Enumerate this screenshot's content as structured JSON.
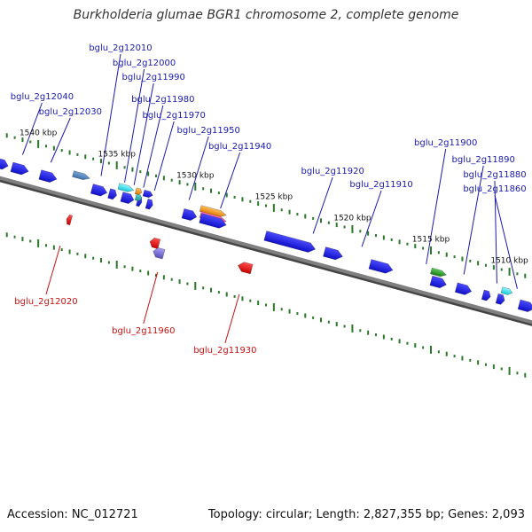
{
  "title": "Burkholderia glumae BGR1 chromosome 2, complete genome",
  "footer": {
    "accession": "Accession: NC_012721",
    "stats": "Topology: circular; Length: 2,827,355 bp; Genes: 2,093"
  },
  "colors": {
    "backbone": "#7f7f7f",
    "tick": "#2a7a2a",
    "forward_gene": "#1f1fe6",
    "reverse_gene": "#e01010",
    "forward_label": "#1a1ab0",
    "reverse_label": "#cc1010"
  },
  "scale": {
    "range_kbp": [
      1508,
      1543
    ],
    "labels": [
      "1540 kbp",
      "1535 kbp",
      "1530 kbp",
      "1525 kbp",
      "1520 kbp",
      "1515 kbp",
      "1510 kbp"
    ],
    "label_kbp": [
      1540,
      1535,
      1530,
      1525,
      1520,
      1515,
      1510
    ]
  },
  "forward_labels": [
    {
      "text": "bglu_2g12040",
      "kbp": 1541.0
    },
    {
      "text": "bglu_2g12030",
      "kbp": 1539.2
    },
    {
      "text": "bglu_2g12010",
      "kbp": 1536.0
    },
    {
      "text": "bglu_2g12000",
      "kbp": 1534.5
    },
    {
      "text": "bglu_2g11990",
      "kbp": 1533.9
    },
    {
      "text": "bglu_2g11980",
      "kbp": 1533.3
    },
    {
      "text": "bglu_2g11970",
      "kbp": 1532.6
    },
    {
      "text": "bglu_2g11950",
      "kbp": 1530.4
    },
    {
      "text": "bglu_2g11940",
      "kbp": 1528.4
    },
    {
      "text": "bglu_2g11920",
      "kbp": 1522.5
    },
    {
      "text": "bglu_2g11910",
      "kbp": 1519.4
    },
    {
      "text": "bglu_2g11900",
      "kbp": 1515.3
    },
    {
      "text": "bglu_2g11890",
      "kbp": 1512.9
    },
    {
      "text": "bglu_2g11880",
      "kbp": 1510.8
    },
    {
      "text": "bglu_2g11860",
      "kbp": 1509.5
    }
  ],
  "reverse_labels": [
    {
      "text": "bglu_2g12020",
      "kbp": 1538.6
    },
    {
      "text": "bglu_2g11960",
      "kbp": 1532.4
    },
    {
      "text": "bglu_2g11930",
      "kbp": 1527.2
    }
  ],
  "genes": [
    {
      "start": 1542.8,
      "end": 1541.9,
      "lane": 0,
      "color": "blue"
    },
    {
      "start": 1541.7,
      "end": 1540.6,
      "lane": 0,
      "color": "blue"
    },
    {
      "start": 1539.9,
      "end": 1538.8,
      "lane": 0,
      "color": "blue"
    },
    {
      "start": 1537.8,
      "end": 1536.7,
      "lane": 1,
      "color": "steelblue"
    },
    {
      "start": 1536.6,
      "end": 1535.6,
      "lane": 0,
      "color": "blue"
    },
    {
      "start": 1535.5,
      "end": 1535.0,
      "lane": 0,
      "color": "blue"
    },
    {
      "start": 1534.9,
      "end": 1533.9,
      "lane": 1,
      "color": "cyan"
    },
    {
      "start": 1534.7,
      "end": 1533.9,
      "lane": 0,
      "color": "blue"
    },
    {
      "start": 1533.8,
      "end": 1533.4,
      "lane": 1,
      "color": "orange"
    },
    {
      "start": 1533.7,
      "end": 1533.4,
      "lane": 0,
      "color": "blue"
    },
    {
      "start": 1533.8,
      "end": 1533.4,
      "lane": 2,
      "color": "teal"
    },
    {
      "start": 1533.1,
      "end": 1532.7,
      "lane": 0,
      "color": "blue"
    },
    {
      "start": 1533.3,
      "end": 1532.7,
      "lane": 1,
      "color": "blue"
    },
    {
      "start": 1530.8,
      "end": 1529.9,
      "lane": 0,
      "color": "blue"
    },
    {
      "start": 1529.7,
      "end": 1528.0,
      "lane": 1,
      "color": "orange"
    },
    {
      "start": 1529.7,
      "end": 1528.0,
      "lane": 2,
      "color": "pink"
    },
    {
      "start": 1529.7,
      "end": 1528.0,
      "lane": 0,
      "color": "blue"
    },
    {
      "start": 1525.6,
      "end": 1522.3,
      "lane": 0,
      "color": "blue"
    },
    {
      "start": 1521.8,
      "end": 1520.6,
      "lane": 0,
      "color": "blue"
    },
    {
      "start": 1518.9,
      "end": 1517.4,
      "lane": 0,
      "color": "blue"
    },
    {
      "start": 1515.0,
      "end": 1514.0,
      "lane": 1,
      "color": "green"
    },
    {
      "start": 1515.0,
      "end": 1514.0,
      "lane": 0,
      "color": "blue"
    },
    {
      "start": 1513.4,
      "end": 1512.4,
      "lane": 0,
      "color": "blue"
    },
    {
      "start": 1511.7,
      "end": 1511.2,
      "lane": 0,
      "color": "blue"
    },
    {
      "start": 1510.8,
      "end": 1510.3,
      "lane": 0,
      "color": "blue"
    },
    {
      "start": 1510.5,
      "end": 1509.8,
      "lane": 1,
      "color": "cyan"
    },
    {
      "start": 1509.4,
      "end": 1508.4,
      "lane": 0,
      "color": "blue"
    },
    {
      "start": 1538.2,
      "end": 1537.9,
      "lane": -1,
      "color": "red"
    },
    {
      "start": 1532.9,
      "end": 1532.3,
      "lane": -1,
      "color": "red"
    },
    {
      "start": 1532.7,
      "end": 1532.0,
      "lane": -2,
      "color": "violet"
    },
    {
      "start": 1527.3,
      "end": 1526.4,
      "lane": -1,
      "color": "red"
    },
    {
      "start": 1508.0,
      "end": 1507.6,
      "lane": -1,
      "color": "red"
    }
  ]
}
